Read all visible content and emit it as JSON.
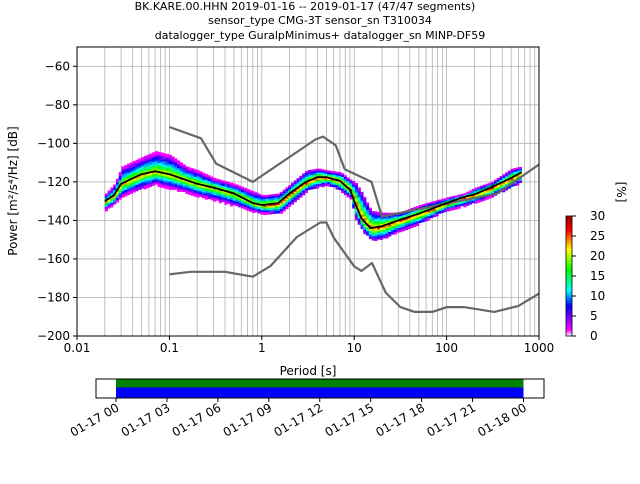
{
  "title": {
    "line1": "BK.KARE.00.HHN   2019-01-16 -- 2019-01-17  (47/47 segments)",
    "line2": "sensor_type CMG-3T sensor_sn T310034",
    "line3": "datalogger_type GuralpMinimus+ datalogger_sn MINP-DF59"
  },
  "chart_data": {
    "type": "heatmap",
    "xlabel": "Period [s]",
    "ylabel": "Power [m²/s⁴/Hz] [dB]",
    "xscale": "log",
    "xlim": [
      0.01,
      1000
    ],
    "ylim": [
      -200,
      -50
    ],
    "xticks": [
      {
        "value": 0.01,
        "label": "0.01"
      },
      {
        "value": 0.1,
        "label": "0.1"
      },
      {
        "value": 1,
        "label": "1"
      },
      {
        "value": 10,
        "label": "10"
      },
      {
        "value": 100,
        "label": "100"
      },
      {
        "value": 1000,
        "label": "1000"
      }
    ],
    "yticks": [
      {
        "value": -60,
        "label": "−60"
      },
      {
        "value": -80,
        "label": "−80"
      },
      {
        "value": -100,
        "label": "−100"
      },
      {
        "value": -120,
        "label": "−120"
      },
      {
        "value": -140,
        "label": "−140"
      },
      {
        "value": -160,
        "label": "−160"
      },
      {
        "value": -180,
        "label": "−180"
      },
      {
        "value": -200,
        "label": "−200"
      }
    ],
    "grid_x_periods": [
      0.02,
      0.03,
      0.04,
      0.05,
      0.06,
      0.07,
      0.08,
      0.09,
      0.2,
      0.3,
      0.4,
      0.5,
      0.6,
      0.7,
      0.8,
      0.9,
      2,
      3,
      4,
      5,
      6,
      7,
      8,
      9,
      20,
      30,
      40,
      50,
      60,
      70,
      80,
      90,
      200,
      300,
      400,
      500,
      600,
      700,
      800,
      900
    ],
    "grid": true,
    "colorbar": {
      "label": "[%]",
      "range": [
        0,
        30
      ],
      "ticks": [
        {
          "value": 0,
          "label": "0"
        },
        {
          "value": 5,
          "label": "5"
        },
        {
          "value": 10,
          "label": "10"
        },
        {
          "value": 15,
          "label": "15"
        },
        {
          "value": 20,
          "label": "20"
        },
        {
          "value": 25,
          "label": "25"
        },
        {
          "value": 30,
          "label": "30"
        }
      ],
      "colors": [
        "#ffffff",
        "#ff00ff",
        "#0000ff",
        "#00ffff",
        "#00ff00",
        "#ffff00",
        "#ff0000",
        "#a00000"
      ]
    },
    "series": [
      {
        "role": "high-noise-model",
        "color": "#666666",
        "x": [
          0.1,
          0.22,
          0.32,
          0.8,
          3.8,
          4.6,
          6.3,
          7.9,
          15.4,
          20,
          354,
          1000
        ],
        "y": [
          -91.5,
          -97.4,
          -110.5,
          -120.0,
          -98.0,
          -96.5,
          -101.0,
          -113.5,
          -120.0,
          -138.0,
          -126.0,
          -111.0
        ]
      },
      {
        "role": "low-noise-model",
        "color": "#666666",
        "x": [
          0.1,
          0.17,
          0.4,
          0.8,
          1.24,
          2.4,
          4.3,
          5.0,
          6.0,
          10.0,
          12.0,
          15.6,
          21.9,
          31.6,
          45,
          70,
          101,
          154,
          328,
          600,
          1000
        ],
        "y": [
          -168.0,
          -166.7,
          -166.7,
          -169.2,
          -163.7,
          -148.6,
          -141.1,
          -141.1,
          -149.0,
          -163.8,
          -166.2,
          -162.1,
          -177.5,
          -185.0,
          -187.5,
          -187.5,
          -185.0,
          -185.0,
          -187.5,
          -184.4,
          -178.0
        ]
      },
      {
        "role": "median",
        "color": "#000000",
        "x": [
          0.02,
          0.025,
          0.03,
          0.05,
          0.07,
          0.1,
          0.15,
          0.2,
          0.3,
          0.5,
          0.8,
          1.0,
          1.5,
          2.0,
          3.0,
          4.0,
          5.0,
          7.0,
          9.0,
          10.0,
          12.0,
          15.0,
          20.0,
          30.0,
          50.0,
          100.0,
          150.0,
          200.0,
          300.0,
          500.0,
          650.0
        ],
        "y": [
          -130.0,
          -127.0,
          -121.0,
          -116.0,
          -114.5,
          -116.0,
          -119.0,
          -121.0,
          -123.0,
          -126.0,
          -131.0,
          -132.0,
          -131.0,
          -126.0,
          -120.0,
          -117.5,
          -117.5,
          -119.5,
          -124.0,
          -130.0,
          -139.0,
          -144.0,
          -143.0,
          -140.0,
          -136.5,
          -131.0,
          -128.0,
          -126.5,
          -123.0,
          -118.0,
          -115.0
        ]
      }
    ],
    "density": {
      "x": [
        0.02,
        0.025,
        0.03,
        0.05,
        0.07,
        0.1,
        0.15,
        0.2,
        0.3,
        0.5,
        0.8,
        1.0,
        1.5,
        2.0,
        3.0,
        4.0,
        5.0,
        7.0,
        9.0,
        10.0,
        12.0,
        15.0,
        20.0,
        30.0,
        50.0,
        100.0,
        150.0,
        200.0,
        300.0,
        500.0,
        650.0
      ],
      "upper": [
        -126.0,
        -121.0,
        -112.0,
        -107.0,
        -104.0,
        -106.0,
        -112.0,
        -114.0,
        -118.0,
        -121.0,
        -125.0,
        -127.0,
        -126.0,
        -121.0,
        -114.0,
        -113.0,
        -114.0,
        -115.0,
        -119.0,
        -120.0,
        -126.0,
        -135.0,
        -136.0,
        -136.0,
        -132.0,
        -128.0,
        -126.0,
        -123.0,
        -120.0,
        -113.0,
        -112.0
      ],
      "lower": [
        -134.0,
        -131.0,
        -127.0,
        -123.0,
        -121.0,
        -123.0,
        -125.0,
        -127.0,
        -129.0,
        -132.0,
        -135.0,
        -136.0,
        -136.0,
        -131.0,
        -124.0,
        -122.0,
        -121.0,
        -124.0,
        -128.0,
        -138.0,
        -145.0,
        -150.0,
        -149.0,
        -145.0,
        -141.0,
        -134.0,
        -132.0,
        -130.0,
        -127.0,
        -122.0,
        -119.0
      ]
    }
  },
  "coverage": {
    "xlabels": [
      "01-17 00",
      "01-17 03",
      "01-17 06",
      "01-17 09",
      "01-17 12",
      "01-17 15",
      "01-17 18",
      "01-17 21",
      "01-18 00"
    ],
    "start_label": "01-17 00",
    "end_label": "01-18 00",
    "bar_colors": {
      "top": "#008000",
      "bottom": "#0000ff"
    }
  }
}
